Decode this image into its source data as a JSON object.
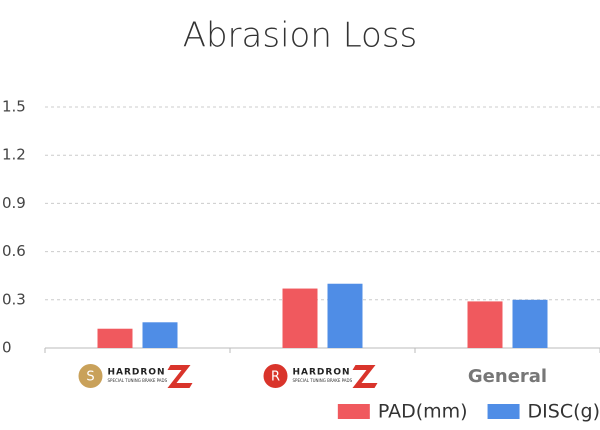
{
  "chart_data": {
    "type": "bar",
    "title": "Abrasion Loss",
    "categories": [
      null,
      null,
      "General"
    ],
    "category_logos": [
      {
        "badge": "S",
        "brand": "HARDRON",
        "tagline": "SPECIAL TUNING BRAKE PADS",
        "badge_color": "#c9a15a"
      },
      {
        "badge": "R",
        "brand": "HARDRON",
        "tagline": "SPECIAL TUNING BRAKE PADS",
        "badge_color": "#d9342b"
      }
    ],
    "series": [
      {
        "name": "PAD(mm)",
        "color": "#f0595e",
        "values": [
          0.12,
          0.37,
          0.29
        ]
      },
      {
        "name": "DISC(g)",
        "color": "#4f8de6",
        "values": [
          0.16,
          0.4,
          0.3
        ]
      }
    ],
    "ylim": [
      0,
      1.5
    ],
    "yticks": [
      0,
      0.3,
      0.6,
      0.9,
      1.2,
      1.5
    ],
    "grid": true,
    "legend": "bottom-right"
  }
}
